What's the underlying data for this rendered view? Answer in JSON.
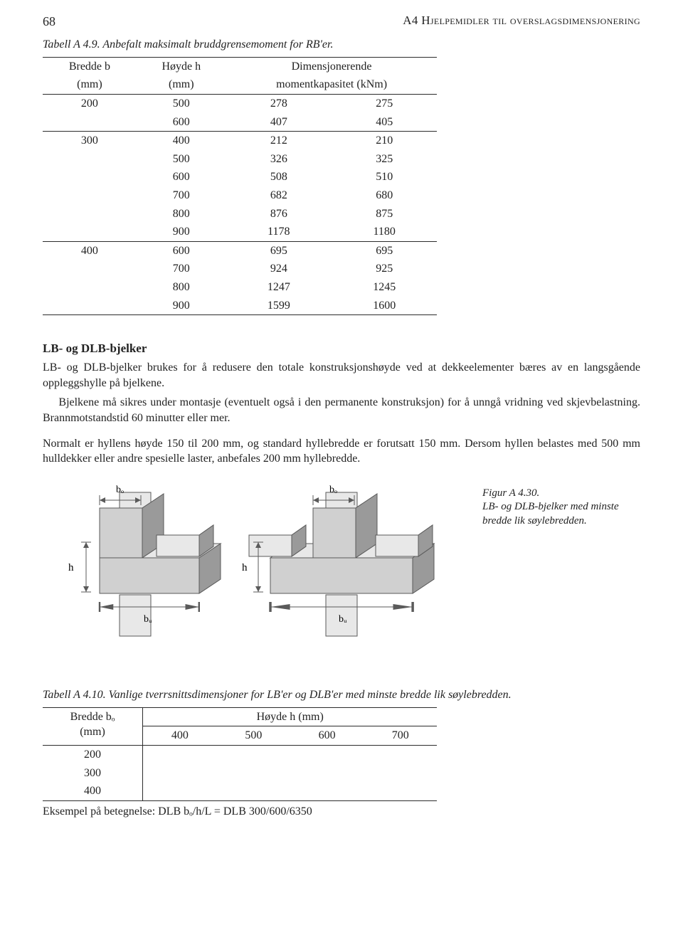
{
  "header": {
    "page_number": "68",
    "chapter": "A4 Hjelpemidler til overslagsdimensjonering"
  },
  "table_a49": {
    "caption_label": "Tabell A 4.9.",
    "caption_text": "Anbefalt maksimalt bruddgrensemoment for RB'er.",
    "col_headers": {
      "b": "Bredde b",
      "b_unit": "(mm)",
      "h": "Høyde h",
      "h_unit": "(mm)",
      "dim": "Dimensjonerende",
      "dim2": "momentkapasitet (kNm)"
    },
    "groups": [
      {
        "b": "200",
        "rows": [
          {
            "h": "500",
            "m1": "278",
            "m2": "275"
          },
          {
            "h": "600",
            "m1": "407",
            "m2": "405"
          }
        ]
      },
      {
        "b": "300",
        "rows": [
          {
            "h": "400",
            "m1": "212",
            "m2": "210"
          },
          {
            "h": "500",
            "m1": "326",
            "m2": "325"
          },
          {
            "h": "600",
            "m1": "508",
            "m2": "510"
          },
          {
            "h": "700",
            "m1": "682",
            "m2": "680"
          },
          {
            "h": "800",
            "m1": "876",
            "m2": "875"
          },
          {
            "h": "900",
            "m1": "1178",
            "m2": "1180"
          }
        ]
      },
      {
        "b": "400",
        "rows": [
          {
            "h": "600",
            "m1": "695",
            "m2": "695"
          },
          {
            "h": "700",
            "m1": "924",
            "m2": "925"
          },
          {
            "h": "800",
            "m1": "1247",
            "m2": "1245"
          },
          {
            "h": "900",
            "m1": "1599",
            "m2": "1600"
          }
        ]
      }
    ]
  },
  "section": {
    "title": "LB- og DLB-bjelker",
    "p1": "LB- og DLB-bjelker brukes for å redusere den totale konstruksjonshøyde ved at dekkeelementer bæres av en langsgående oppleggshylle på bjelkene.",
    "p2": "Bjelkene må sikres under montasje (eventuelt også i den permanente konstruksjon) for å unngå vridning ved skjevbelastning. Brannmotstandstid 60 minutter eller mer.",
    "p3": "Normalt er hyllens høyde 150 til 200 mm, og standard hyllebredde er forutsatt 150 mm. Dersom hyllen belastes med 500 mm hulldekker eller andre spesielle laster, anbefales 200 mm hyllebredde."
  },
  "figure": {
    "label": "Figur A 4.30.",
    "caption": "LB- og DLB-bjelker med minste bredde lik søylebredden.",
    "labels": {
      "bo": "bₒ",
      "bu": "bᵤ",
      "h": "h"
    }
  },
  "table_a410": {
    "caption_label": "Tabell A 4.10.",
    "caption_text": "Vanlige tverrsnittsdimensjoner for LB'er og DLB'er med minste bredde lik søylebredden.",
    "row_header": {
      "line1": "Bredde bₒ",
      "line2": "(mm)"
    },
    "col_super": "Høyde h (mm)",
    "cols": [
      "400",
      "500",
      "600",
      "700"
    ],
    "row_values": [
      "200",
      "300",
      "400"
    ]
  },
  "example_line": "Eksempel på betegnelse: DLB bₒ/h/L = DLB 300/600/6350"
}
